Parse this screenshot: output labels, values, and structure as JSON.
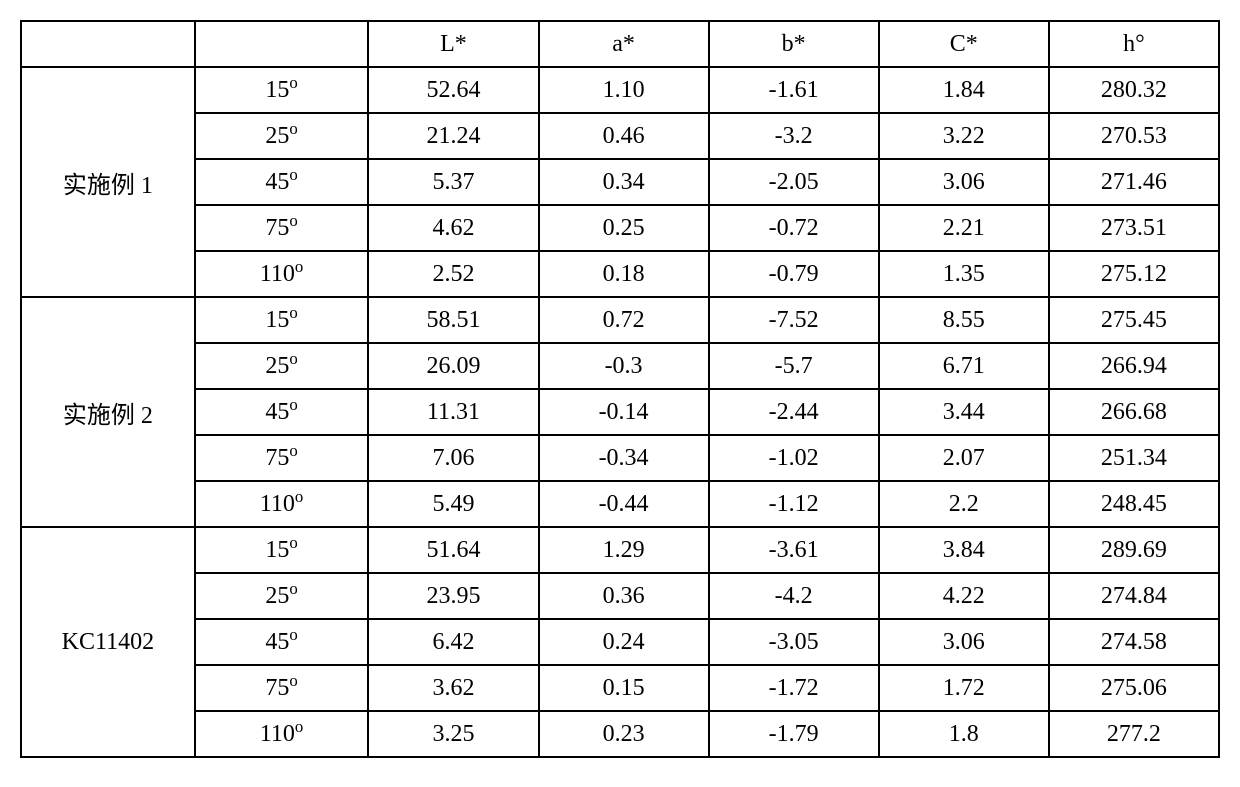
{
  "table": {
    "type": "table",
    "background_color": "#ffffff",
    "border_color": "#000000",
    "border_width": 2,
    "font_size": 24,
    "font_family": "SimSun",
    "columns": {
      "label": "",
      "angle": "",
      "L": "L*",
      "a": "a*",
      "b": "b*",
      "C": "C*",
      "h": "h°"
    },
    "col_widths": [
      "14.5%",
      "14.5%",
      "14.2%",
      "14.2%",
      "14.2%",
      "14.2%",
      "14.2%"
    ],
    "angles": [
      "15",
      "25",
      "45",
      "75",
      "110"
    ],
    "angle_suffix": "°",
    "groups": [
      {
        "label": "实施例 1",
        "rows": [
          {
            "L": "52.64",
            "a": "1.10",
            "b": "-1.61",
            "C": "1.84",
            "h": "280.32"
          },
          {
            "L": "21.24",
            "a": "0.46",
            "b": "-3.2",
            "C": "3.22",
            "h": "270.53"
          },
          {
            "L": "5.37",
            "a": "0.34",
            "b": "-2.05",
            "C": "3.06",
            "h": "271.46"
          },
          {
            "L": "4.62",
            "a": "0.25",
            "b": "-0.72",
            "C": "2.21",
            "h": "273.51"
          },
          {
            "L": "2.52",
            "a": "0.18",
            "b": "-0.79",
            "C": "1.35",
            "h": "275.12"
          }
        ]
      },
      {
        "label": "实施例 2",
        "rows": [
          {
            "L": "58.51",
            "a": "0.72",
            "b": "-7.52",
            "C": "8.55",
            "h": "275.45"
          },
          {
            "L": "26.09",
            "a": "-0.3",
            "b": "-5.7",
            "C": "6.71",
            "h": "266.94"
          },
          {
            "L": "11.31",
            "a": "-0.14",
            "b": "-2.44",
            "C": "3.44",
            "h": "266.68"
          },
          {
            "L": "7.06",
            "a": "-0.34",
            "b": "-1.02",
            "C": "2.07",
            "h": "251.34"
          },
          {
            "L": "5.49",
            "a": "-0.44",
            "b": "-1.12",
            "C": "2.2",
            "h": "248.45"
          }
        ]
      },
      {
        "label": "KC11402",
        "rows": [
          {
            "L": "51.64",
            "a": "1.29",
            "b": "-3.61",
            "C": "3.84",
            "h": "289.69"
          },
          {
            "L": "23.95",
            "a": "0.36",
            "b": "-4.2",
            "C": "4.22",
            "h": "274.84"
          },
          {
            "L": "6.42",
            "a": "0.24",
            "b": "-3.05",
            "C": "3.06",
            "h": "274.58"
          },
          {
            "L": "3.62",
            "a": "0.15",
            "b": "-1.72",
            "C": "1.72",
            "h": "275.06"
          },
          {
            "L": "3.25",
            "a": "0.23",
            "b": "-1.79",
            "C": "1.8",
            "h": "277.2"
          }
        ]
      }
    ]
  }
}
